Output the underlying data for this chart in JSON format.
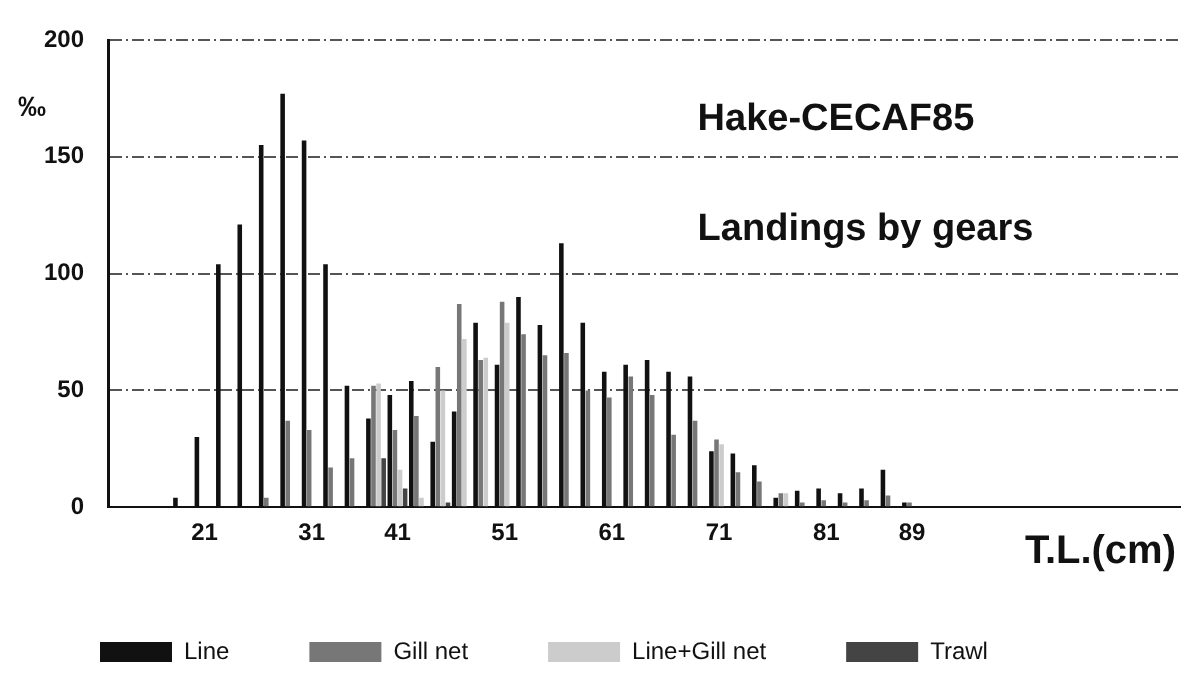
{
  "chart_data": {
    "type": "bar",
    "title": "Hake-CECAF85",
    "subtitle": "Landings by gears",
    "xlabel": "T.L.(cm)",
    "ylabel": "‰",
    "categories": [
      null,
      null,
      null,
      null,
      "21",
      null,
      null,
      null,
      null,
      "31",
      null,
      null,
      null,
      "41",
      null,
      null,
      null,
      null,
      "51",
      null,
      null,
      null,
      null,
      "61",
      null,
      null,
      null,
      null,
      "71",
      null,
      null,
      null,
      null,
      "81",
      null,
      null,
      null,
      "89",
      null,
      null,
      null,
      null,
      null,
      null,
      null,
      null,
      null,
      null,
      null,
      null
    ],
    "series": [
      {
        "name": "Line",
        "color": "#111111",
        "values": [
          null,
          null,
          null,
          4,
          30,
          104,
          121,
          155,
          177,
          157,
          104,
          52,
          38,
          48,
          54,
          28,
          41,
          79,
          61,
          90,
          78,
          113,
          79,
          58,
          61,
          63,
          58,
          56,
          24,
          23,
          18,
          4,
          7,
          8,
          6,
          8,
          16,
          2,
          null,
          null,
          null,
          null,
          null,
          null,
          null,
          null,
          null,
          null,
          null,
          null
        ]
      },
      {
        "name": "Gill net",
        "color": "#777777",
        "values": [
          null,
          null,
          null,
          null,
          null,
          null,
          null,
          4,
          37,
          33,
          17,
          21,
          52,
          33,
          39,
          60,
          87,
          63,
          88,
          74,
          65,
          66,
          50,
          47,
          56,
          48,
          31,
          37,
          29,
          15,
          11,
          6,
          2,
          3,
          2,
          3,
          5,
          2,
          null,
          null,
          null,
          null,
          null,
          null,
          null,
          null,
          null,
          null,
          null,
          null
        ]
      },
      {
        "name": "Line+Gill net",
        "color": "#cccccc",
        "values": [
          null,
          null,
          null,
          null,
          null,
          null,
          null,
          null,
          null,
          null,
          null,
          null,
          53,
          16,
          4,
          50,
          72,
          64,
          79,
          null,
          null,
          null,
          null,
          null,
          null,
          null,
          null,
          null,
          27,
          null,
          null,
          6,
          null,
          null,
          null,
          null,
          null,
          null,
          null,
          null,
          null,
          null,
          null,
          null,
          null,
          null,
          null,
          null,
          null,
          null
        ]
      },
      {
        "name": "Trawl",
        "color": "#444444",
        "values": [
          null,
          null,
          null,
          null,
          null,
          null,
          null,
          null,
          null,
          null,
          null,
          null,
          21,
          8,
          null,
          2,
          null,
          null,
          null,
          null,
          null,
          null,
          null,
          null,
          null,
          null,
          null,
          null,
          null,
          null,
          null,
          null,
          null,
          null,
          null,
          null,
          null,
          null,
          null,
          null,
          null,
          null,
          null,
          null,
          null,
          null,
          null,
          null,
          null,
          null
        ]
      }
    ],
    "ylim": [
      0,
      200
    ],
    "yticks": [
      0,
      50,
      100,
      150,
      200
    ],
    "grid": "y",
    "legend": "bottom"
  }
}
